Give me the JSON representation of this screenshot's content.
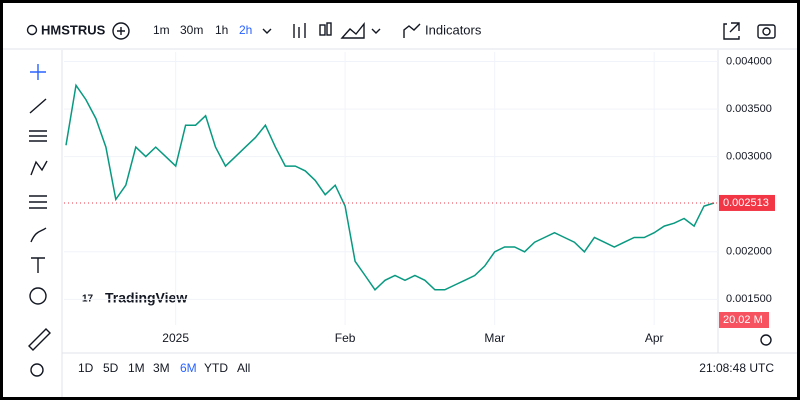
{
  "toolbar": {
    "symbol": "HMSTRUS",
    "intervals": [
      "1m",
      "30m",
      "1h",
      "2h"
    ],
    "indicators": "Indicators"
  },
  "watermark": "TradingView",
  "ranges": [
    "1D",
    "5D",
    "1M",
    "3M",
    "6M",
    "YTD",
    "All"
  ],
  "clock": "21:08:48 UTC",
  "chart_data": {
    "type": "line",
    "color": "#089981",
    "grid": true,
    "categories": [
      null,
      null,
      null,
      null,
      null,
      null,
      null,
      null,
      null,
      null,
      null,
      "2025",
      null,
      null,
      null,
      null,
      null,
      null,
      null,
      null,
      null,
      null,
      null,
      null,
      null,
      null,
      null,
      null,
      "Feb",
      null,
      null,
      null,
      null,
      null,
      null,
      null,
      null,
      null,
      null,
      null,
      null,
      null,
      null,
      "Mar",
      null,
      null,
      null,
      null,
      null,
      null,
      null,
      null,
      null,
      null,
      null,
      null,
      null,
      null,
      null,
      "Apr",
      null,
      null,
      null,
      null,
      null,
      null
    ],
    "values": [
      0.00312,
      0.00375,
      0.0036,
      0.0034,
      0.0031,
      0.00255,
      0.0027,
      0.0031,
      0.003,
      0.0031,
      0.003,
      0.0029,
      0.00333,
      0.00333,
      0.00343,
      0.0031,
      0.0029,
      0.003,
      0.0031,
      0.0032,
      0.00333,
      0.0031,
      0.0029,
      0.0029,
      0.00285,
      0.00275,
      0.0026,
      0.0027,
      0.00248,
      0.0019,
      0.00175,
      0.0016,
      0.0017,
      0.00175,
      0.0017,
      0.00175,
      0.0017,
      0.0016,
      0.0016,
      0.00165,
      0.0017,
      0.00175,
      0.00185,
      0.002,
      0.00205,
      0.00205,
      0.002,
      0.0021,
      0.00215,
      0.0022,
      0.00215,
      0.0021,
      0.002,
      0.00215,
      0.0021,
      0.00205,
      0.0021,
      0.00215,
      0.00215,
      0.0022,
      0.00227,
      0.0023,
      0.00235,
      0.00227,
      0.00248,
      0.002513
    ],
    "ylim": [
      0.00123,
      0.0041
    ],
    "yticks": [
      {
        "value": 0.0015,
        "label": "0.001500"
      },
      {
        "value": 0.002,
        "label": "0.002000"
      },
      {
        "value": 0.003,
        "label": "0.003000"
      },
      {
        "value": 0.0035,
        "label": "0.003500"
      },
      {
        "value": 0.004,
        "label": "0.004000"
      }
    ],
    "last_volume": {
      "value": 20020000,
      "label": "20.02 M"
    }
  }
}
